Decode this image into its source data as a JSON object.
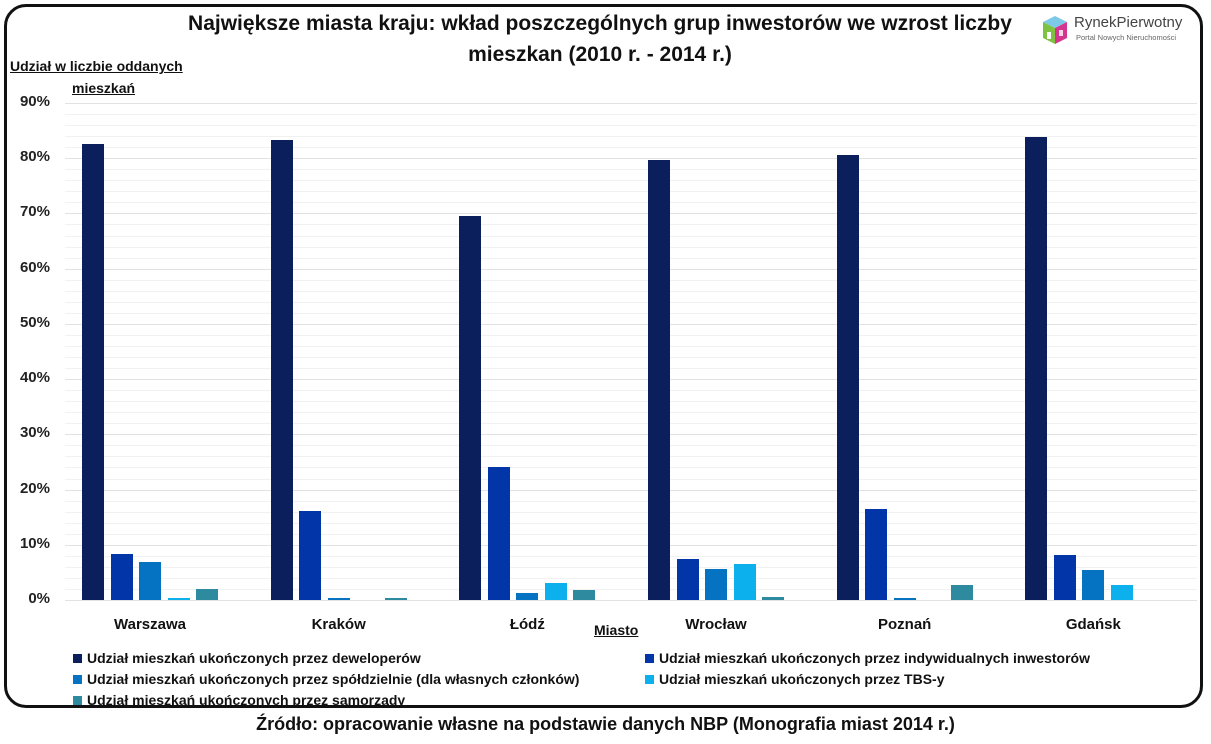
{
  "chart_data": {
    "type": "bar",
    "title": "Największe miasta kraju: wkład poszczególnych grup inwestorów we wzrost liczby mieszkan (2010 r. - 2014 r.)",
    "ylabel": "Udział w liczbie oddanych mieszkań",
    "xlabel": "Miasto",
    "ylim": [
      0,
      90
    ],
    "yticks": [
      "0%",
      "10%",
      "20%",
      "30%",
      "40%",
      "50%",
      "60%",
      "70%",
      "80%",
      "90%"
    ],
    "grid": true,
    "legend_position": "bottom",
    "categories": [
      "Warszawa",
      "Kraków",
      "Łódź",
      "Wrocław",
      "Poznań",
      "Gdańsk"
    ],
    "series": [
      {
        "name": "Udział mieszkań ukończonych przez deweloperów",
        "color": "#0b1f5c",
        "values": [
          82.6,
          83.3,
          69.6,
          79.7,
          80.6,
          83.8
        ]
      },
      {
        "name": "Udział mieszkań ukończonych przez indywidualnych inwestorów",
        "color": "#0236a8",
        "values": [
          8.3,
          16.1,
          24.1,
          7.4,
          16.5,
          8.2
        ]
      },
      {
        "name": "Udział mieszkań ukończonych przez spółdzielnie (dla własnych członków)",
        "color": "#0672c2",
        "values": [
          6.9,
          0.3,
          1.3,
          5.6,
          0.3,
          5.4
        ]
      },
      {
        "name": "Udział mieszkań ukończonych przez TBS-y",
        "color": "#0cb0ec",
        "values": [
          0.3,
          0.0,
          3.0,
          6.5,
          0.0,
          2.7
        ]
      },
      {
        "name": "Udział mieszkań ukończonych przez samorządy",
        "color": "#2e8a9e",
        "values": [
          2.0,
          0.4,
          1.9,
          0.6,
          2.7,
          0.0
        ]
      }
    ]
  },
  "header": {
    "title_line1": "Największe miasta kraju: wkład poszczególnych grup inwestorów we wzrost liczby",
    "title_line2": "mieszkan (2010 r. - 2014 r.)",
    "ylabel_line1": "Udział w liczbie oddanych",
    "ylabel_line2": "mieszkań"
  },
  "logo": {
    "brand": "RynekPierwotny",
    "tagline": "Portal Nowych Nieruchomości"
  },
  "axis": {
    "xlabel": "Miasto"
  },
  "source": "Źródło: opracowanie własne na podstawie danych NBP (Monografia miast 2014 r.)"
}
